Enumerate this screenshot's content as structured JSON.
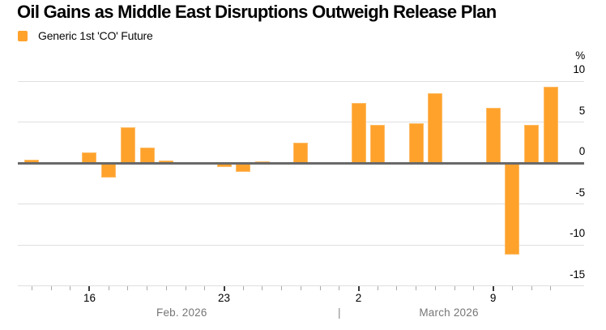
{
  "header": {
    "title": "Oil Gains as Middle East Disruptions Outweigh Release Plan",
    "legend_label": "Generic 1st 'CO' Future"
  },
  "chart_data": {
    "type": "bar",
    "title": "Oil Gains as Middle East Disruptions Outweigh Release Plan",
    "series_name": "Generic 1st 'CO' Future",
    "unit": "%",
    "ylim": [
      -15,
      10
    ],
    "yticks": [
      10,
      5,
      0,
      -5,
      -10,
      -15
    ],
    "grid": true,
    "legend_position": "top-left",
    "points": [
      {
        "date": "Feb 13",
        "day": 0,
        "value": 0.4
      },
      {
        "date": "Feb 16",
        "day": 3,
        "value": 1.3
      },
      {
        "date": "Feb 17",
        "day": 4,
        "value": -1.8
      },
      {
        "date": "Feb 18",
        "day": 5,
        "value": 4.4
      },
      {
        "date": "Feb 19",
        "day": 6,
        "value": 1.9
      },
      {
        "date": "Feb 20",
        "day": 7,
        "value": 0.3
      },
      {
        "date": "Feb 23",
        "day": 10,
        "value": -0.5
      },
      {
        "date": "Feb 24",
        "day": 11,
        "value": -1.1
      },
      {
        "date": "Feb 25",
        "day": 12,
        "value": 0.2
      },
      {
        "date": "Feb 26",
        "day": 13,
        "value": -0.2
      },
      {
        "date": "Feb 27",
        "day": 14,
        "value": 2.5
      },
      {
        "date": "Mar 2",
        "day": 17,
        "value": 7.3
      },
      {
        "date": "Mar 3",
        "day": 18,
        "value": 4.7
      },
      {
        "date": "Mar 4",
        "day": 19,
        "value": 0.0
      },
      {
        "date": "Mar 5",
        "day": 20,
        "value": 4.9
      },
      {
        "date": "Mar 6",
        "day": 21,
        "value": 8.5
      },
      {
        "date": "Mar 9",
        "day": 24,
        "value": 6.7
      },
      {
        "date": "Mar 10",
        "day": 25,
        "value": -11.2
      },
      {
        "date": "Mar 11",
        "day": 26,
        "value": 4.7
      },
      {
        "date": "Mar 12",
        "day": 27,
        "value": 9.3
      }
    ],
    "x_axis": {
      "n_days": 28,
      "major_tick_days": [
        3,
        10,
        17,
        24
      ],
      "day_labels": [
        {
          "label": "16",
          "day": 3
        },
        {
          "label": "23",
          "day": 10
        },
        {
          "label": "2",
          "day": 17
        },
        {
          "label": "9",
          "day": 24
        }
      ],
      "month_labels": [
        {
          "label": "Feb. 2026",
          "center_day": 7.8
        },
        {
          "label": "March 2026",
          "center_day": 21.7
        }
      ],
      "month_separator": {
        "glyph": "|",
        "day": 16
      }
    }
  },
  "colors": {
    "bar_fill": "#FFA22C",
    "bar_edge": "#FFBC66",
    "grid_line": "#DFDFDF",
    "zero_line": "#696969",
    "minor_tick": "#A9A9A9",
    "major_tick": "#3A3A3A",
    "text_primary": "#000000",
    "text_month": "#767676"
  }
}
